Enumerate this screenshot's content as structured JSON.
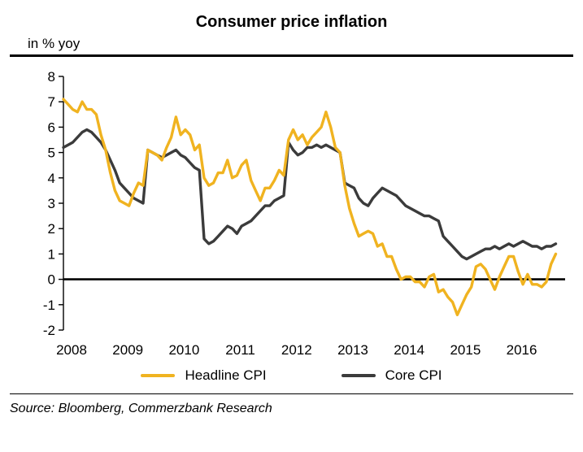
{
  "page": {
    "title": "Consumer price inflation",
    "unit_label": "in % yoy",
    "source": "Source: Bloomberg, Commerzbank Research"
  },
  "chart_data": {
    "type": "line",
    "title": "Consumer price inflation",
    "ylabel": "in % yoy",
    "ylim": [
      -2,
      8
    ],
    "ytick_step": 1,
    "grid": false,
    "legend_position": "bottom-center",
    "x_unit": "month",
    "x_range": [
      "2008-01",
      "2016-10"
    ],
    "x_axis_months": 108,
    "x_labels": [
      "2008",
      "2009",
      "2010",
      "2011",
      "2012",
      "2013",
      "2014",
      "2015",
      "2016"
    ],
    "colors": {
      "headline": "#F0B320",
      "core": "#3B3B3B",
      "axis": "#000000"
    },
    "series": [
      {
        "name": "Headline CPI",
        "color_key": "headline",
        "values": [
          7.1,
          6.9,
          6.7,
          6.6,
          7.0,
          6.7,
          6.7,
          6.5,
          5.7,
          5.1,
          4.2,
          3.5,
          3.1,
          3.0,
          2.9,
          3.4,
          3.8,
          3.7,
          5.1,
          5.0,
          4.9,
          4.7,
          5.2,
          5.6,
          6.4,
          5.7,
          5.9,
          5.7,
          5.1,
          5.3,
          4.0,
          3.7,
          3.8,
          4.2,
          4.2,
          4.7,
          4.0,
          4.1,
          4.5,
          4.7,
          3.9,
          3.5,
          3.1,
          3.6,
          3.6,
          3.9,
          4.3,
          4.1,
          5.5,
          5.9,
          5.5,
          5.7,
          5.3,
          5.6,
          5.8,
          6.0,
          6.6,
          6.0,
          5.2,
          5.0,
          3.7,
          2.8,
          2.2,
          1.7,
          1.8,
          1.9,
          1.8,
          1.3,
          1.4,
          0.9,
          0.9,
          0.4,
          0.0,
          0.1,
          0.1,
          -0.1,
          -0.1,
          -0.3,
          0.1,
          0.2,
          -0.5,
          -0.4,
          -0.7,
          -0.9,
          -1.4,
          -1.0,
          -0.6,
          -0.3,
          0.5,
          0.6,
          0.4,
          0.0,
          -0.4,
          0.1,
          0.5,
          0.9,
          0.9,
          0.3,
          -0.2,
          0.2,
          -0.2,
          -0.2,
          -0.3,
          -0.1,
          0.6,
          1.0
        ]
      },
      {
        "name": "Core CPI",
        "color_key": "core",
        "values": [
          5.2,
          5.3,
          5.4,
          5.6,
          5.8,
          5.9,
          5.8,
          5.6,
          5.4,
          5.1,
          4.7,
          4.3,
          3.8,
          3.6,
          3.4,
          3.2,
          3.1,
          3.0,
          5.1,
          5.0,
          4.9,
          4.8,
          4.9,
          5.0,
          5.1,
          4.9,
          4.8,
          4.6,
          4.4,
          4.3,
          1.6,
          1.4,
          1.5,
          1.7,
          1.9,
          2.1,
          2.0,
          1.8,
          2.1,
          2.2,
          2.3,
          2.5,
          2.7,
          2.9,
          2.9,
          3.1,
          3.2,
          3.3,
          5.4,
          5.1,
          4.9,
          5.0,
          5.2,
          5.2,
          5.3,
          5.2,
          5.3,
          5.2,
          5.1,
          5.0,
          3.8,
          3.7,
          3.6,
          3.2,
          3.0,
          2.9,
          3.2,
          3.4,
          3.6,
          3.5,
          3.4,
          3.3,
          3.1,
          2.9,
          2.8,
          2.7,
          2.6,
          2.5,
          2.5,
          2.4,
          2.3,
          1.7,
          1.5,
          1.3,
          1.1,
          0.9,
          0.8,
          0.9,
          1.0,
          1.1,
          1.2,
          1.2,
          1.3,
          1.2,
          1.3,
          1.4,
          1.3,
          1.4,
          1.5,
          1.4,
          1.3,
          1.3,
          1.2,
          1.3,
          1.3,
          1.4
        ]
      }
    ]
  }
}
